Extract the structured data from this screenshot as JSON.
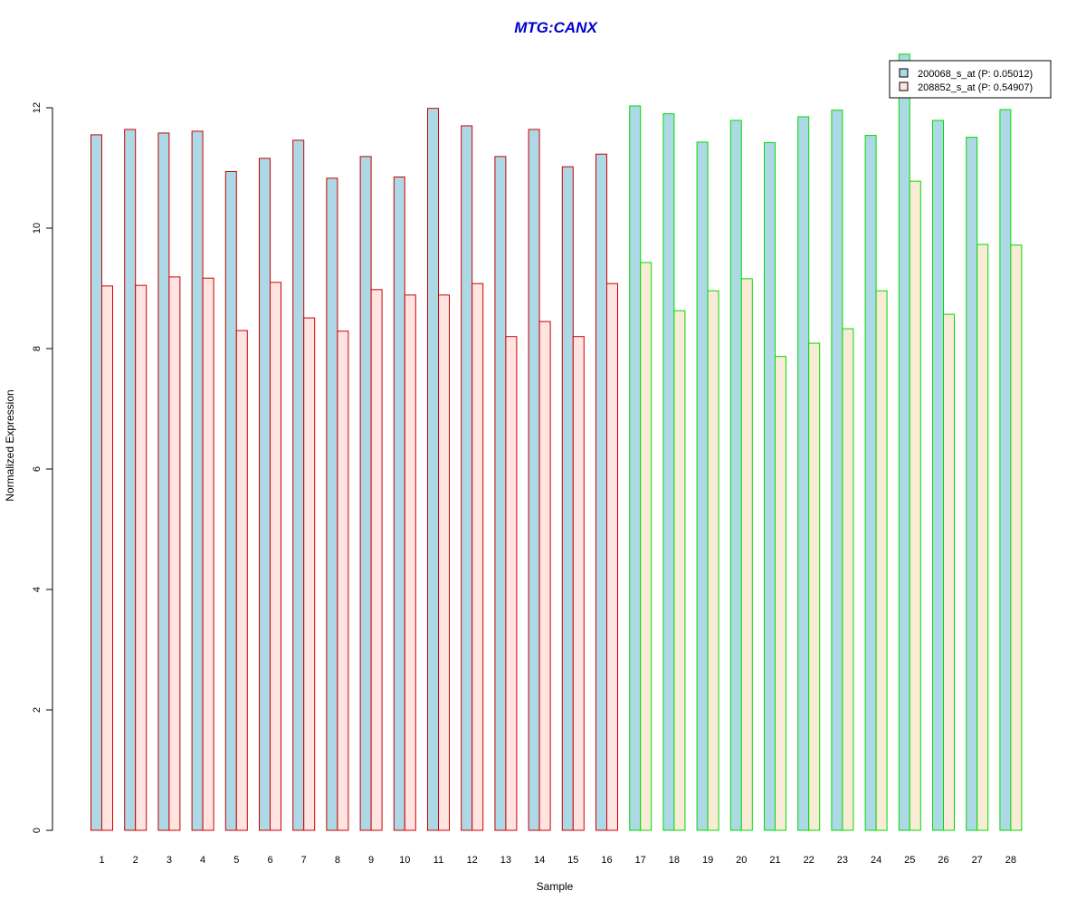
{
  "colors": {
    "title": "#0000CC",
    "series1_fill": "#ADD8E6",
    "series2_fill_group1": "#FFE4E1",
    "series2_fill_group2": "#FAEBD7",
    "group1_border": "#CC0000",
    "group2_border": "#00DD00",
    "axis": "#000000"
  },
  "chart_data": {
    "type": "bar",
    "title": "MTG:CANX",
    "xlabel": "Sample",
    "ylabel": "Normalized Expression",
    "ylim": [
      0,
      12
    ],
    "yticks": [
      0,
      2,
      4,
      6,
      8,
      10,
      12
    ],
    "categories": [
      "1",
      "2",
      "3",
      "4",
      "5",
      "6",
      "7",
      "8",
      "9",
      "10",
      "11",
      "12",
      "13",
      "14",
      "15",
      "16",
      "17",
      "18",
      "19",
      "20",
      "21",
      "22",
      "23",
      "24",
      "25",
      "26",
      "27",
      "28"
    ],
    "group": [
      1,
      1,
      1,
      1,
      1,
      1,
      1,
      1,
      1,
      1,
      1,
      1,
      1,
      1,
      1,
      1,
      2,
      2,
      2,
      2,
      2,
      2,
      2,
      2,
      2,
      2,
      2,
      2
    ],
    "series": [
      {
        "name": "200068_s_at (P: 0.05012)",
        "values": [
          11.55,
          11.64,
          11.58,
          11.61,
          10.94,
          11.16,
          11.46,
          10.83,
          11.19,
          10.85,
          11.99,
          11.7,
          11.19,
          11.64,
          11.02,
          11.23,
          12.03,
          11.9,
          11.43,
          11.79,
          11.42,
          11.85,
          11.96,
          11.54,
          12.89,
          11.79,
          11.51,
          11.97
        ]
      },
      {
        "name": "208852_s_at (P: 0.54907)",
        "values": [
          9.04,
          9.05,
          9.19,
          9.17,
          8.3,
          9.1,
          8.51,
          8.29,
          8.98,
          8.89,
          8.89,
          9.08,
          8.2,
          8.45,
          8.2,
          9.08,
          9.43,
          8.63,
          8.96,
          9.16,
          7.87,
          8.09,
          8.33,
          8.96,
          10.78,
          8.57,
          9.73,
          9.72
        ]
      }
    ],
    "legend_position": "top-right"
  }
}
